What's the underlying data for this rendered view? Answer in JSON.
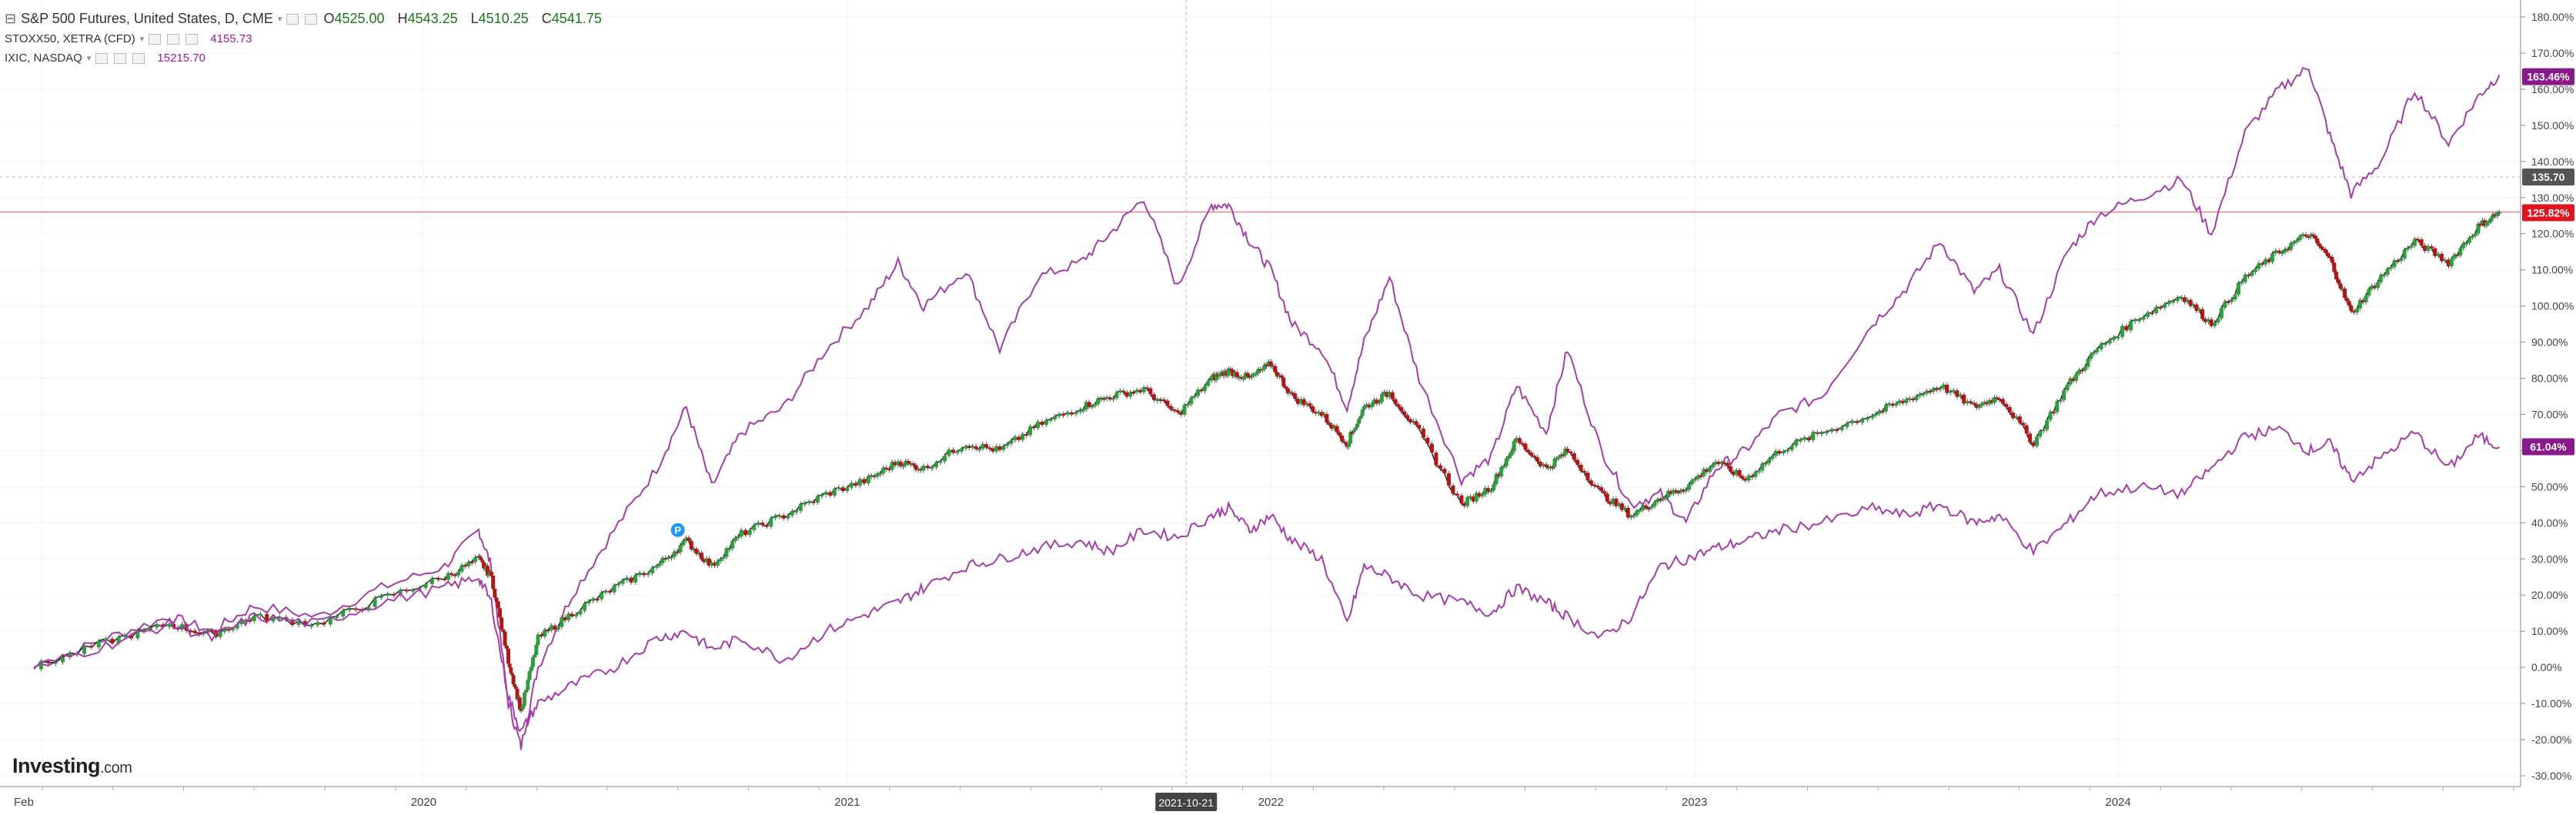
{
  "header": {
    "main_symbol": "S&P 500 Futures, United States, D, CME",
    "ohlc": [
      {
        "k": "O",
        "v": "4525.00"
      },
      {
        "k": "H",
        "v": "4543.25"
      },
      {
        "k": "L",
        "v": "4510.25"
      },
      {
        "k": "C",
        "v": "4541.75"
      }
    ],
    "compare": [
      {
        "symbol": "STOXX50, XETRA (CFD)",
        "value": "4155.73"
      },
      {
        "symbol": "IXIC, NASDAQ",
        "value": "15215.70"
      }
    ]
  },
  "logo": {
    "brand": "Investing",
    "suffix": ".com"
  },
  "marker_label": "P",
  "colors": {
    "up": "#2e9e3e",
    "down": "#b01717",
    "compare": "#a33ea9",
    "hline": "#f08080",
    "badge_price": "#e0141e",
    "badge_compare": "#8a1a8c",
    "badge_cross": "#555555"
  },
  "chart_data": {
    "type": "line",
    "x_ticks": [
      "Feb",
      "2020",
      "2021",
      "2022",
      "2023",
      "2024"
    ],
    "crosshair_date": "2021-10-21",
    "y_ticks": [
      "180.00%",
      "170.00%",
      "160.00%",
      "150.00%",
      "140.00%",
      "130.00%",
      "120.00%",
      "110.00%",
      "100.00%",
      "90.00%",
      "80.00%",
      "70.00%",
      "60.00%",
      "50.00%",
      "40.00%",
      "30.00%",
      "20.00%",
      "10.00%",
      "0.00%",
      "-10.00%",
      "-20.00%",
      "-30.00%"
    ],
    "ylim": [
      -32,
      188
    ],
    "series": [
      {
        "name": "IXIC, NASDAQ",
        "badge": "163.46%",
        "kind": "line",
        "points": [
          [
            2019.08,
            0
          ],
          [
            2019.25,
            8
          ],
          [
            2019.4,
            14
          ],
          [
            2019.5,
            10
          ],
          [
            2019.6,
            17
          ],
          [
            2019.75,
            14
          ],
          [
            2019.9,
            22
          ],
          [
            2020.05,
            28
          ],
          [
            2020.13,
            38
          ],
          [
            2020.16,
            28
          ],
          [
            2020.2,
            -10
          ],
          [
            2020.23,
            -22
          ],
          [
            2020.27,
            0
          ],
          [
            2020.35,
            20
          ],
          [
            2020.45,
            38
          ],
          [
            2020.55,
            55
          ],
          [
            2020.62,
            72
          ],
          [
            2020.68,
            50
          ],
          [
            2020.75,
            65
          ],
          [
            2020.85,
            72
          ],
          [
            2020.95,
            88
          ],
          [
            2021.05,
            100
          ],
          [
            2021.12,
            112
          ],
          [
            2021.18,
            100
          ],
          [
            2021.28,
            110
          ],
          [
            2021.36,
            88
          ],
          [
            2021.45,
            108
          ],
          [
            2021.55,
            112
          ],
          [
            2021.62,
            120
          ],
          [
            2021.7,
            130
          ],
          [
            2021.78,
            105
          ],
          [
            2021.86,
            128
          ],
          [
            2021.9,
            128
          ],
          [
            2021.95,
            118
          ],
          [
            2022.0,
            110
          ],
          [
            2022.05,
            95
          ],
          [
            2022.12,
            88
          ],
          [
            2022.18,
            72
          ],
          [
            2022.22,
            90
          ],
          [
            2022.28,
            108
          ],
          [
            2022.35,
            80
          ],
          [
            2022.45,
            52
          ],
          [
            2022.52,
            58
          ],
          [
            2022.58,
            78
          ],
          [
            2022.65,
            65
          ],
          [
            2022.7,
            88
          ],
          [
            2022.78,
            60
          ],
          [
            2022.85,
            45
          ],
          [
            2022.92,
            48
          ],
          [
            2022.98,
            40
          ],
          [
            2023.05,
            55
          ],
          [
            2023.12,
            60
          ],
          [
            2023.2,
            70
          ],
          [
            2023.3,
            75
          ],
          [
            2023.42,
            95
          ],
          [
            2023.5,
            105
          ],
          [
            2023.58,
            118
          ],
          [
            2023.66,
            104
          ],
          [
            2023.72,
            110
          ],
          [
            2023.8,
            92
          ],
          [
            2023.88,
            115
          ],
          [
            2023.95,
            125
          ],
          [
            2024.05,
            130
          ],
          [
            2024.15,
            135
          ],
          [
            2024.22,
            120
          ],
          [
            2024.3,
            148
          ],
          [
            2024.38,
            160
          ],
          [
            2024.45,
            166
          ],
          [
            2024.5,
            147
          ],
          [
            2024.55,
            131
          ],
          [
            2024.62,
            140
          ],
          [
            2024.7,
            160
          ],
          [
            2024.78,
            145
          ],
          [
            2024.85,
            158
          ],
          [
            2024.9,
            164
          ]
        ]
      },
      {
        "name": "S&P 500 Futures, United States, D, CME",
        "badge": "125.82%",
        "kind": "candle",
        "points": [
          [
            2019.08,
            0
          ],
          [
            2019.25,
            7
          ],
          [
            2019.4,
            12
          ],
          [
            2019.5,
            9
          ],
          [
            2019.6,
            14
          ],
          [
            2019.75,
            12
          ],
          [
            2019.9,
            19
          ],
          [
            2020.05,
            25
          ],
          [
            2020.13,
            30
          ],
          [
            2020.16,
            25
          ],
          [
            2020.2,
            2
          ],
          [
            2020.23,
            -12
          ],
          [
            2020.27,
            8
          ],
          [
            2020.35,
            15
          ],
          [
            2020.45,
            22
          ],
          [
            2020.55,
            28
          ],
          [
            2020.62,
            35
          ],
          [
            2020.68,
            28
          ],
          [
            2020.75,
            37
          ],
          [
            2020.85,
            42
          ],
          [
            2020.95,
            48
          ],
          [
            2021.05,
            52
          ],
          [
            2021.12,
            57
          ],
          [
            2021.18,
            55
          ],
          [
            2021.28,
            62
          ],
          [
            2021.36,
            60
          ],
          [
            2021.45,
            67
          ],
          [
            2021.55,
            72
          ],
          [
            2021.62,
            75
          ],
          [
            2021.7,
            77
          ],
          [
            2021.78,
            70
          ],
          [
            2021.86,
            80
          ],
          [
            2021.9,
            82
          ],
          [
            2021.95,
            80
          ],
          [
            2022.0,
            84
          ],
          [
            2022.05,
            75
          ],
          [
            2022.12,
            70
          ],
          [
            2022.18,
            62
          ],
          [
            2022.22,
            72
          ],
          [
            2022.28,
            76
          ],
          [
            2022.35,
            65
          ],
          [
            2022.45,
            45
          ],
          [
            2022.52,
            50
          ],
          [
            2022.58,
            63
          ],
          [
            2022.65,
            55
          ],
          [
            2022.7,
            60
          ],
          [
            2022.78,
            48
          ],
          [
            2022.85,
            42
          ],
          [
            2022.92,
            47
          ],
          [
            2022.98,
            50
          ],
          [
            2023.05,
            57
          ],
          [
            2023.12,
            52
          ],
          [
            2023.2,
            60
          ],
          [
            2023.3,
            65
          ],
          [
            2023.42,
            70
          ],
          [
            2023.5,
            74
          ],
          [
            2023.58,
            78
          ],
          [
            2023.66,
            72
          ],
          [
            2023.72,
            75
          ],
          [
            2023.8,
            62
          ],
          [
            2023.88,
            78
          ],
          [
            2023.95,
            88
          ],
          [
            2024.05,
            97
          ],
          [
            2024.15,
            103
          ],
          [
            2024.22,
            95
          ],
          [
            2024.3,
            108
          ],
          [
            2024.38,
            115
          ],
          [
            2024.45,
            120
          ],
          [
            2024.5,
            113
          ],
          [
            2024.55,
            98
          ],
          [
            2024.62,
            108
          ],
          [
            2024.7,
            118
          ],
          [
            2024.78,
            112
          ],
          [
            2024.85,
            122
          ],
          [
            2024.9,
            126
          ]
        ]
      },
      {
        "name": "STOXX50, XETRA (CFD)",
        "badge": "61.04%",
        "kind": "line",
        "points": [
          [
            2019.08,
            0
          ],
          [
            2019.25,
            6
          ],
          [
            2019.4,
            12
          ],
          [
            2019.5,
            8
          ],
          [
            2019.6,
            14
          ],
          [
            2019.75,
            12
          ],
          [
            2019.9,
            18
          ],
          [
            2020.05,
            22
          ],
          [
            2020.13,
            25
          ],
          [
            2020.16,
            18
          ],
          [
            2020.2,
            -8
          ],
          [
            2020.23,
            -18
          ],
          [
            2020.27,
            -10
          ],
          [
            2020.35,
            -5
          ],
          [
            2020.45,
            0
          ],
          [
            2020.55,
            8
          ],
          [
            2020.62,
            10
          ],
          [
            2020.68,
            5
          ],
          [
            2020.75,
            8
          ],
          [
            2020.85,
            2
          ],
          [
            2020.95,
            10
          ],
          [
            2021.05,
            15
          ],
          [
            2021.12,
            18
          ],
          [
            2021.18,
            22
          ],
          [
            2021.28,
            28
          ],
          [
            2021.36,
            30
          ],
          [
            2021.45,
            33
          ],
          [
            2021.55,
            35
          ],
          [
            2021.62,
            32
          ],
          [
            2021.7,
            38
          ],
          [
            2021.78,
            36
          ],
          [
            2021.86,
            42
          ],
          [
            2021.9,
            44
          ],
          [
            2021.95,
            38
          ],
          [
            2022.0,
            42
          ],
          [
            2022.05,
            35
          ],
          [
            2022.12,
            30
          ],
          [
            2022.18,
            12
          ],
          [
            2022.22,
            28
          ],
          [
            2022.28,
            25
          ],
          [
            2022.35,
            20
          ],
          [
            2022.45,
            18
          ],
          [
            2022.52,
            15
          ],
          [
            2022.58,
            22
          ],
          [
            2022.65,
            18
          ],
          [
            2022.7,
            14
          ],
          [
            2022.78,
            8
          ],
          [
            2022.85,
            14
          ],
          [
            2022.92,
            28
          ],
          [
            2022.98,
            30
          ],
          [
            2023.05,
            33
          ],
          [
            2023.12,
            35
          ],
          [
            2023.2,
            38
          ],
          [
            2023.3,
            40
          ],
          [
            2023.42,
            44
          ],
          [
            2023.5,
            42
          ],
          [
            2023.58,
            45
          ],
          [
            2023.66,
            40
          ],
          [
            2023.72,
            42
          ],
          [
            2023.8,
            32
          ],
          [
            2023.88,
            40
          ],
          [
            2023.95,
            48
          ],
          [
            2024.05,
            50
          ],
          [
            2024.15,
            48
          ],
          [
            2024.22,
            55
          ],
          [
            2024.3,
            64
          ],
          [
            2024.38,
            66
          ],
          [
            2024.45,
            60
          ],
          [
            2024.5,
            62
          ],
          [
            2024.55,
            52
          ],
          [
            2024.62,
            58
          ],
          [
            2024.7,
            65
          ],
          [
            2024.78,
            55
          ],
          [
            2024.85,
            64
          ],
          [
            2024.9,
            61
          ]
        ]
      }
    ],
    "crosshair_value": "135.70",
    "grid": true,
    "legend_placement": "top-left"
  }
}
